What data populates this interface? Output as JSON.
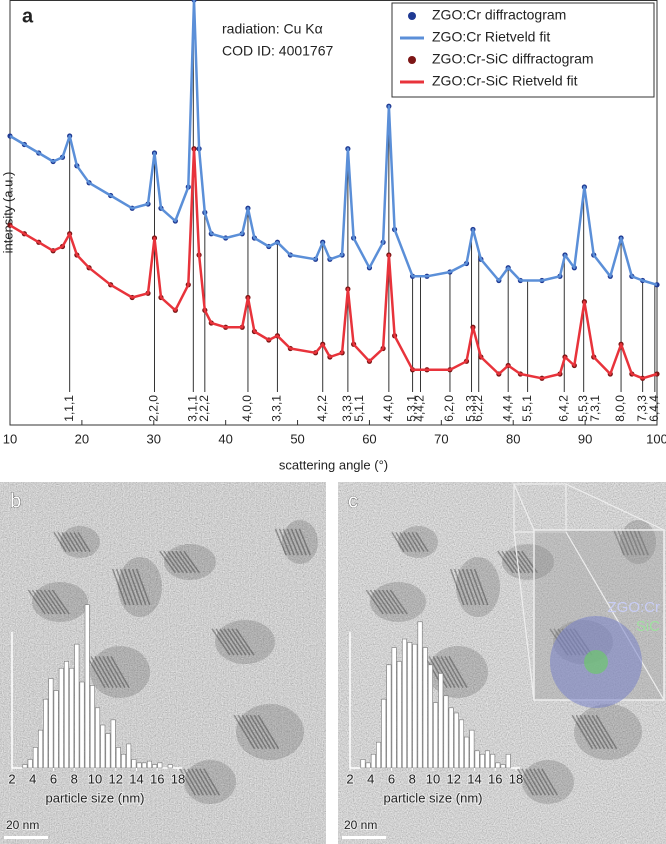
{
  "chart_data": [
    {
      "type": "line",
      "panel_label": "a",
      "xlabel": "scattering angle (°)",
      "ylabel": "intensity (a.u.)",
      "annotations": [
        "radiation: Cu Kα",
        "COD ID: 4001767"
      ],
      "xlim": [
        10,
        100
      ],
      "ylim": [
        0,
        100
      ],
      "xticks": [
        10,
        20,
        30,
        40,
        50,
        60,
        70,
        80,
        90,
        100
      ],
      "x": [
        10,
        12,
        14,
        16,
        17.3,
        18.3,
        19.3,
        21,
        24,
        27,
        29.2,
        30.1,
        31,
        33,
        34.8,
        35.6,
        36.3,
        37.1,
        38,
        40,
        42.3,
        43.1,
        44,
        46,
        47.2,
        49,
        52.5,
        53.5,
        54.5,
        56.2,
        57,
        57.8,
        60,
        61.9,
        62.7,
        63.5,
        66,
        68,
        71.2,
        73.5,
        74.4,
        75.5,
        78,
        79.3,
        81,
        84,
        86.5,
        87.2,
        88.5,
        89.9,
        91.2,
        93.5,
        95,
        96.5,
        98,
        100
      ],
      "series": [
        {
          "name": "ZGO:Cr diffractogram",
          "color": "#1f3a93",
          "marker": "circle",
          "values": [
            68,
            66,
            64,
            62,
            63,
            68,
            61,
            57,
            54,
            51,
            52,
            64,
            51,
            48,
            56,
            100,
            65,
            50,
            45,
            44,
            45,
            51,
            44,
            42,
            43,
            40,
            39,
            43,
            39,
            40,
            65,
            44,
            37,
            43,
            75,
            46,
            35,
            35,
            36,
            38,
            46,
            39,
            34,
            37,
            34,
            34,
            35,
            40,
            37,
            56,
            40,
            35,
            44,
            35,
            34,
            33
          ]
        },
        {
          "name": "ZGO:Cr Rietveld fit",
          "color": "#5b8fd8",
          "values": [
            68,
            66,
            64,
            62,
            63,
            68,
            61,
            57,
            54,
            51,
            52,
            64,
            51,
            48,
            56,
            100,
            65,
            50,
            45,
            44,
            45,
            51,
            44,
            42,
            43,
            40,
            39,
            43,
            39,
            40,
            65,
            44,
            37,
            43,
            75,
            46,
            35,
            35,
            36,
            38,
            46,
            39,
            34,
            37,
            34,
            34,
            35,
            40,
            37,
            56,
            40,
            35,
            44,
            35,
            34,
            33
          ]
        },
        {
          "name": "ZGO:Cr-SiC diffractogram",
          "color": "#7d1616",
          "marker": "circle",
          "values": [
            47,
            45,
            43,
            41,
            42,
            45,
            40,
            37,
            33,
            30,
            31,
            44,
            30,
            27,
            33,
            65,
            40,
            27,
            24,
            23,
            23,
            30,
            22,
            20,
            21,
            18,
            17,
            19,
            16,
            17,
            32,
            19,
            15,
            18,
            40,
            21,
            13,
            13,
            13,
            15,
            23,
            16,
            12,
            14,
            12,
            11,
            12,
            16,
            14,
            29,
            16,
            12,
            19,
            12,
            11,
            12
          ]
        },
        {
          "name": "ZGO:Cr-SiC Rietveld fit",
          "color": "#e8333b",
          "values": [
            47,
            45,
            43,
            41,
            42,
            45,
            40,
            37,
            33,
            30,
            31,
            44,
            30,
            27,
            33,
            65,
            40,
            27,
            24,
            23,
            23,
            30,
            22,
            20,
            21,
            18,
            17,
            19,
            16,
            17,
            32,
            19,
            15,
            18,
            40,
            21,
            13,
            13,
            13,
            15,
            23,
            16,
            12,
            14,
            12,
            11,
            12,
            16,
            14,
            29,
            16,
            12,
            19,
            12,
            11,
            12
          ]
        }
      ],
      "reflections": [
        {
          "x": 18.3,
          "label": "1,1,1"
        },
        {
          "x": 30.1,
          "label": "2,2,0"
        },
        {
          "x": 35.5,
          "label": "3,1,1"
        },
        {
          "x": 37.1,
          "label": "2,2,2"
        },
        {
          "x": 43.1,
          "label": "4,0,0"
        },
        {
          "x": 47.2,
          "label": "3,3,1"
        },
        {
          "x": 53.5,
          "label": "4,2,2"
        },
        {
          "x": 57.0,
          "label": "3,3,3"
        },
        {
          "x": 57.0,
          "label": "5,1,1"
        },
        {
          "x": 62.7,
          "label": "4,4,0"
        },
        {
          "x": 66.0,
          "label": "5,3,1"
        },
        {
          "x": 67.1,
          "label": "4,4,2"
        },
        {
          "x": 71.2,
          "label": "6,2,0"
        },
        {
          "x": 74.2,
          "label": "5,3,3"
        },
        {
          "x": 75.2,
          "label": "6,2,2"
        },
        {
          "x": 79.3,
          "label": "4,4,4"
        },
        {
          "x": 82.0,
          "label": "5,5,1"
        },
        {
          "x": 87.1,
          "label": "6,4,2"
        },
        {
          "x": 89.8,
          "label": "5,5,3"
        },
        {
          "x": 89.8,
          "label": "7,3,1"
        },
        {
          "x": 95.0,
          "label": "8,0,0"
        },
        {
          "x": 98.0,
          "label": "7,3,3"
        },
        {
          "x": 99.7,
          "label": "6,4,4"
        }
      ]
    },
    {
      "type": "histogram",
      "panel_label": "b",
      "xlabel": "particle size (nm)",
      "scale_bar": "20 nm",
      "xlim": [
        2,
        18
      ],
      "ylim": [
        0,
        100
      ],
      "xticks": [
        2,
        4,
        6,
        8,
        10,
        12,
        14,
        16,
        18
      ],
      "bins": [
        3,
        3.5,
        4,
        4.5,
        5,
        5.5,
        6,
        6.5,
        7,
        7.5,
        8,
        8.5,
        9,
        9.5,
        10,
        10.5,
        11,
        11.5,
        12,
        12.5,
        13,
        13.5,
        14,
        14.5,
        15,
        15.5,
        16,
        16.5,
        17,
        17.5
      ],
      "counts": [
        2,
        5,
        12,
        22,
        40,
        52,
        45,
        58,
        62,
        58,
        72,
        50,
        95,
        48,
        35,
        25,
        20,
        28,
        12,
        8,
        14,
        5,
        3,
        3,
        4,
        2,
        3,
        0,
        2
      ]
    },
    {
      "type": "histogram",
      "panel_label": "c",
      "xlabel": "particle size (nm)",
      "scale_bar": "20 nm",
      "inset_labels": [
        "ZGO:Cr",
        "SiC"
      ],
      "xlim": [
        2,
        18
      ],
      "ylim": [
        0,
        100
      ],
      "xticks": [
        2,
        4,
        6,
        8,
        10,
        12,
        14,
        16,
        18
      ],
      "bins": [
        3,
        3.5,
        4,
        4.5,
        5,
        5.5,
        6,
        6.5,
        7,
        7.5,
        8,
        8.5,
        9,
        9.5,
        10,
        10.5,
        11,
        11.5,
        12,
        12.5,
        13,
        13.5,
        14,
        14.5,
        15,
        15.5,
        16,
        16.5,
        17,
        17.5
      ],
      "counts": [
        5,
        3,
        8,
        15,
        40,
        60,
        70,
        62,
        75,
        73,
        72,
        85,
        70,
        60,
        38,
        55,
        42,
        35,
        32,
        28,
        18,
        22,
        10,
        8,
        10,
        8,
        3,
        2,
        8
      ]
    }
  ]
}
